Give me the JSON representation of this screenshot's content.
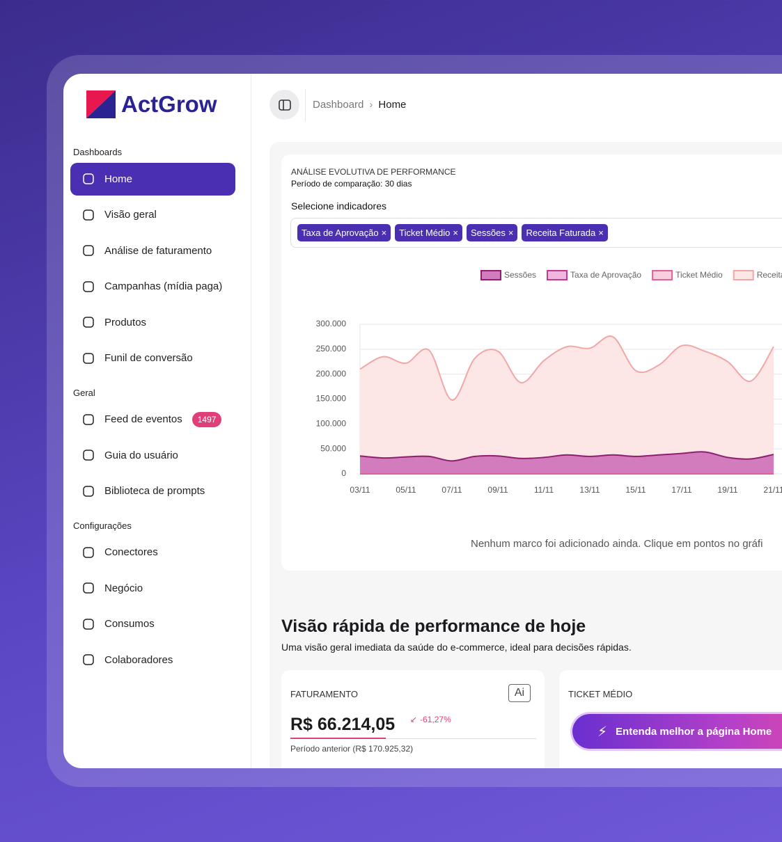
{
  "brand": "ActGrow",
  "sidebar": {
    "sections": [
      {
        "title": "Dashboards",
        "items": [
          "Home",
          "Visão geral",
          "Análise de faturamento",
          "Campanhas (mídia paga)",
          "Produtos",
          "Funil de conversão"
        ]
      },
      {
        "title": "Geral",
        "items": [
          "Feed de eventos",
          "Guia do usuário",
          "Biblioteca de prompts"
        ]
      },
      {
        "title": "Configurações",
        "items": [
          "Conectores",
          "Negócio",
          "Consumos",
          "Colaboradores"
        ]
      }
    ],
    "badge": 1497
  },
  "breadcrumb": [
    "Dashboard",
    "Home"
  ],
  "chart_card": {
    "title": "ANÁLISE EVOLUTIVA DE PERFORMANCE",
    "subtitle": "Período de comparação: 30 dias",
    "selector_label": "Selecione indicadores",
    "chips": [
      "Taxa de Aprovação",
      "Ticket Médio",
      "Sessões",
      "Receita Faturada"
    ],
    "empty_note": "Nenhum marco foi adicionado ainda. Clique em pontos no gráfi"
  },
  "chart_data": {
    "type": "area",
    "categories": [
      "03/11",
      null,
      "05/11",
      null,
      "07/11",
      null,
      "09/11",
      null,
      "11/11",
      null,
      "13/11",
      null,
      "15/11",
      null,
      "17/11",
      null,
      "19/11",
      null,
      "21/11"
    ],
    "series": [
      {
        "name": "Sessões",
        "color": "#8e1f6f",
        "fill": "#d27bbd",
        "values": [
          36000,
          32000,
          34000,
          35000,
          26000,
          35000,
          36000,
          31000,
          33000,
          38000,
          35000,
          38000,
          35000,
          38000,
          41000,
          44000,
          33000,
          30000,
          39000
        ]
      },
      {
        "name": "Taxa de Aprovação",
        "color": "#c2378f",
        "fill": "#f0b6e0",
        "values": [
          0,
          0,
          0,
          0,
          0,
          0,
          0,
          0,
          0,
          0,
          0,
          0,
          0,
          0,
          0,
          0,
          0,
          0,
          0
        ]
      },
      {
        "name": "Ticket Médio",
        "color": "#e0609a",
        "fill": "#f9cfe0",
        "values": [
          0,
          0,
          0,
          0,
          0,
          0,
          0,
          0,
          0,
          0,
          0,
          0,
          0,
          0,
          0,
          0,
          0,
          0,
          0
        ]
      },
      {
        "name": "Receita Faturada",
        "color": "#f2a7a7",
        "fill": "#fde6e6",
        "values": [
          210000,
          235000,
          222000,
          248000,
          148000,
          232000,
          246000,
          183000,
          227000,
          255000,
          252000,
          275000,
          207000,
          218000,
          257000,
          246000,
          225000,
          186000,
          255000
        ]
      }
    ],
    "ylim": [
      0,
      300000
    ],
    "yticks": [
      {
        "value": 0,
        "label": "0"
      },
      {
        "value": 50000,
        "label": "50.000"
      },
      {
        "value": 100000,
        "label": "100.000"
      },
      {
        "value": 150000,
        "label": "150.000"
      },
      {
        "value": 200000,
        "label": "200.000"
      },
      {
        "value": 250000,
        "label": "250.000"
      },
      {
        "value": 300000,
        "label": "300.000"
      }
    ],
    "grid": true
  },
  "summary": {
    "title": "Visão rápida de performance de hoje",
    "subtitle": "Uma visão geral imediata da saúde do e-commerce, ideal para decisões rápidas.",
    "cards": [
      {
        "label": "FATURAMENTO",
        "value": "R$ 66.214,05",
        "change": "-61,27%",
        "previous": "Período anterior (R$ 170.925,32)",
        "icon": "Ai"
      },
      {
        "label": "TICKET MÉDIO"
      }
    ]
  },
  "assistant_button": "Entenda melhor a página Home"
}
